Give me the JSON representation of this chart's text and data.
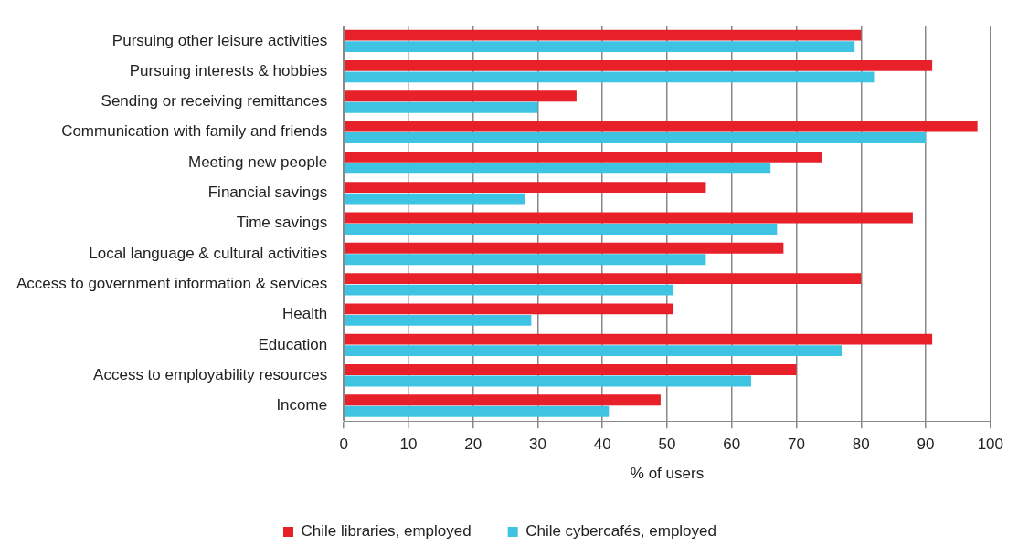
{
  "chart_data": {
    "type": "bar",
    "orientation": "horizontal",
    "xlabel": "% of users",
    "categories": [
      "Pursuing other leisure activities",
      "Pursuing interests & hobbies",
      "Sending or receiving remittances",
      "Communication with family and friends",
      "Meeting new people",
      "Financial savings",
      "Time savings",
      "Local language & cultural activities",
      "Access to government information & services",
      "Health",
      "Education",
      "Access to employability resources",
      "Income"
    ],
    "series": [
      {
        "name": "Chile libraries, employed",
        "color": "#e8202a",
        "values": [
          80,
          91,
          36,
          98,
          74,
          56,
          88,
          68,
          80,
          51,
          91,
          70,
          49
        ]
      },
      {
        "name": "Chile cybercafés, employed",
        "color": "#3ec3e3",
        "values": [
          79,
          82,
          30,
          90,
          66,
          28,
          67,
          56,
          51,
          29,
          77,
          63,
          41
        ]
      }
    ],
    "xlim": [
      0,
      100
    ],
    "xticks": [
      0,
      10,
      20,
      30,
      40,
      50,
      60,
      70,
      80,
      90,
      100
    ],
    "grid": "x",
    "legend": "bottom"
  }
}
